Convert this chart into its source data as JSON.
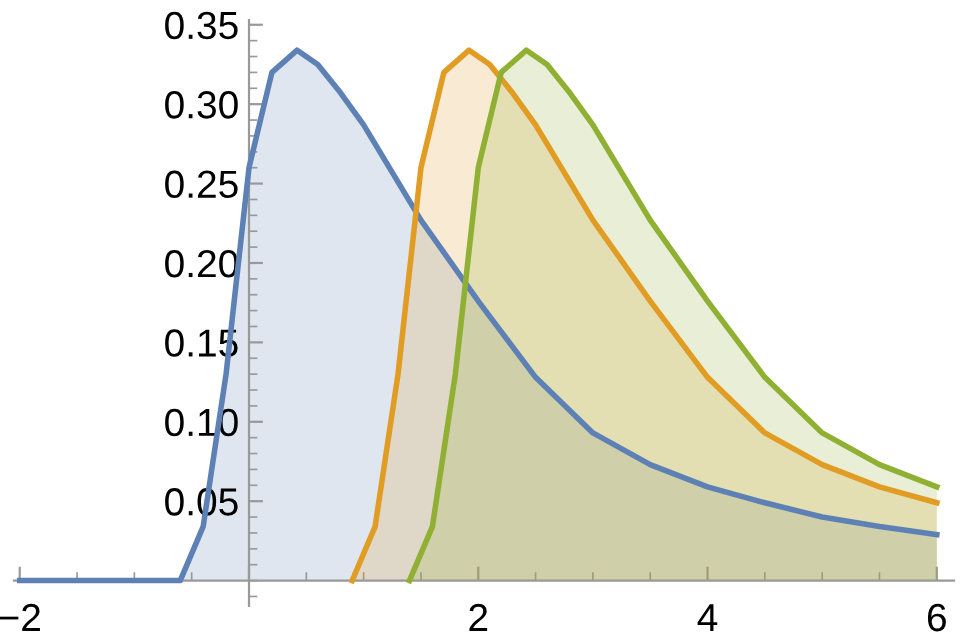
{
  "chart_data": {
    "type": "area",
    "xlim": [
      -2.05,
      6.15
    ],
    "ylim": [
      -0.016,
      0.353
    ],
    "xticks": [
      -2,
      {
        "value": 0,
        "label": null
      },
      2,
      4,
      6
    ],
    "yticks": [
      0.05,
      {
        "value": 0.1,
        "label": "0.10"
      },
      0.15,
      {
        "value": 0.2,
        "label": "0.20"
      },
      0.25,
      {
        "value": 0.3,
        "label": "0.30"
      },
      0.35
    ],
    "grid": false,
    "legend": false,
    "series": [
      {
        "color": "#5e81b5",
        "x": [
          -2,
          -0.6,
          -0.4,
          -0.2,
          0,
          0.2,
          0.42,
          0.6,
          0.8,
          1,
          1.5,
          2,
          2.5,
          3,
          3.5,
          4,
          4.5,
          5,
          5.5,
          6
        ],
        "values": [
          0,
          0,
          0.034,
          0.13,
          0.26,
          0.32,
          0.334,
          0.325,
          0.307,
          0.287,
          0.227,
          0.176,
          0.128,
          0.093,
          0.073,
          0.059,
          0.049,
          0.04,
          0.034,
          0.029
        ]
      },
      {
        "color": "#e19c24",
        "x": [
          0.9,
          1.1,
          1.3,
          1.5,
          1.7,
          1.92,
          2.1,
          2.3,
          2.5,
          3,
          3.5,
          4,
          4.5,
          5,
          5.5,
          6
        ],
        "values": [
          0,
          0.034,
          0.13,
          0.26,
          0.32,
          0.334,
          0.325,
          0.307,
          0.287,
          0.227,
          0.176,
          0.128,
          0.093,
          0.073,
          0.059,
          0.049
        ]
      },
      {
        "color": "#8fb032",
        "x": [
          1.4,
          1.6,
          1.8,
          2,
          2.2,
          2.42,
          2.6,
          2.8,
          3,
          3.5,
          4,
          4.5,
          5,
          5.5,
          6
        ],
        "values": [
          0,
          0.034,
          0.13,
          0.26,
          0.32,
          0.334,
          0.325,
          0.307,
          0.287,
          0.227,
          0.176,
          0.128,
          0.093,
          0.073,
          0.059
        ]
      }
    ]
  }
}
